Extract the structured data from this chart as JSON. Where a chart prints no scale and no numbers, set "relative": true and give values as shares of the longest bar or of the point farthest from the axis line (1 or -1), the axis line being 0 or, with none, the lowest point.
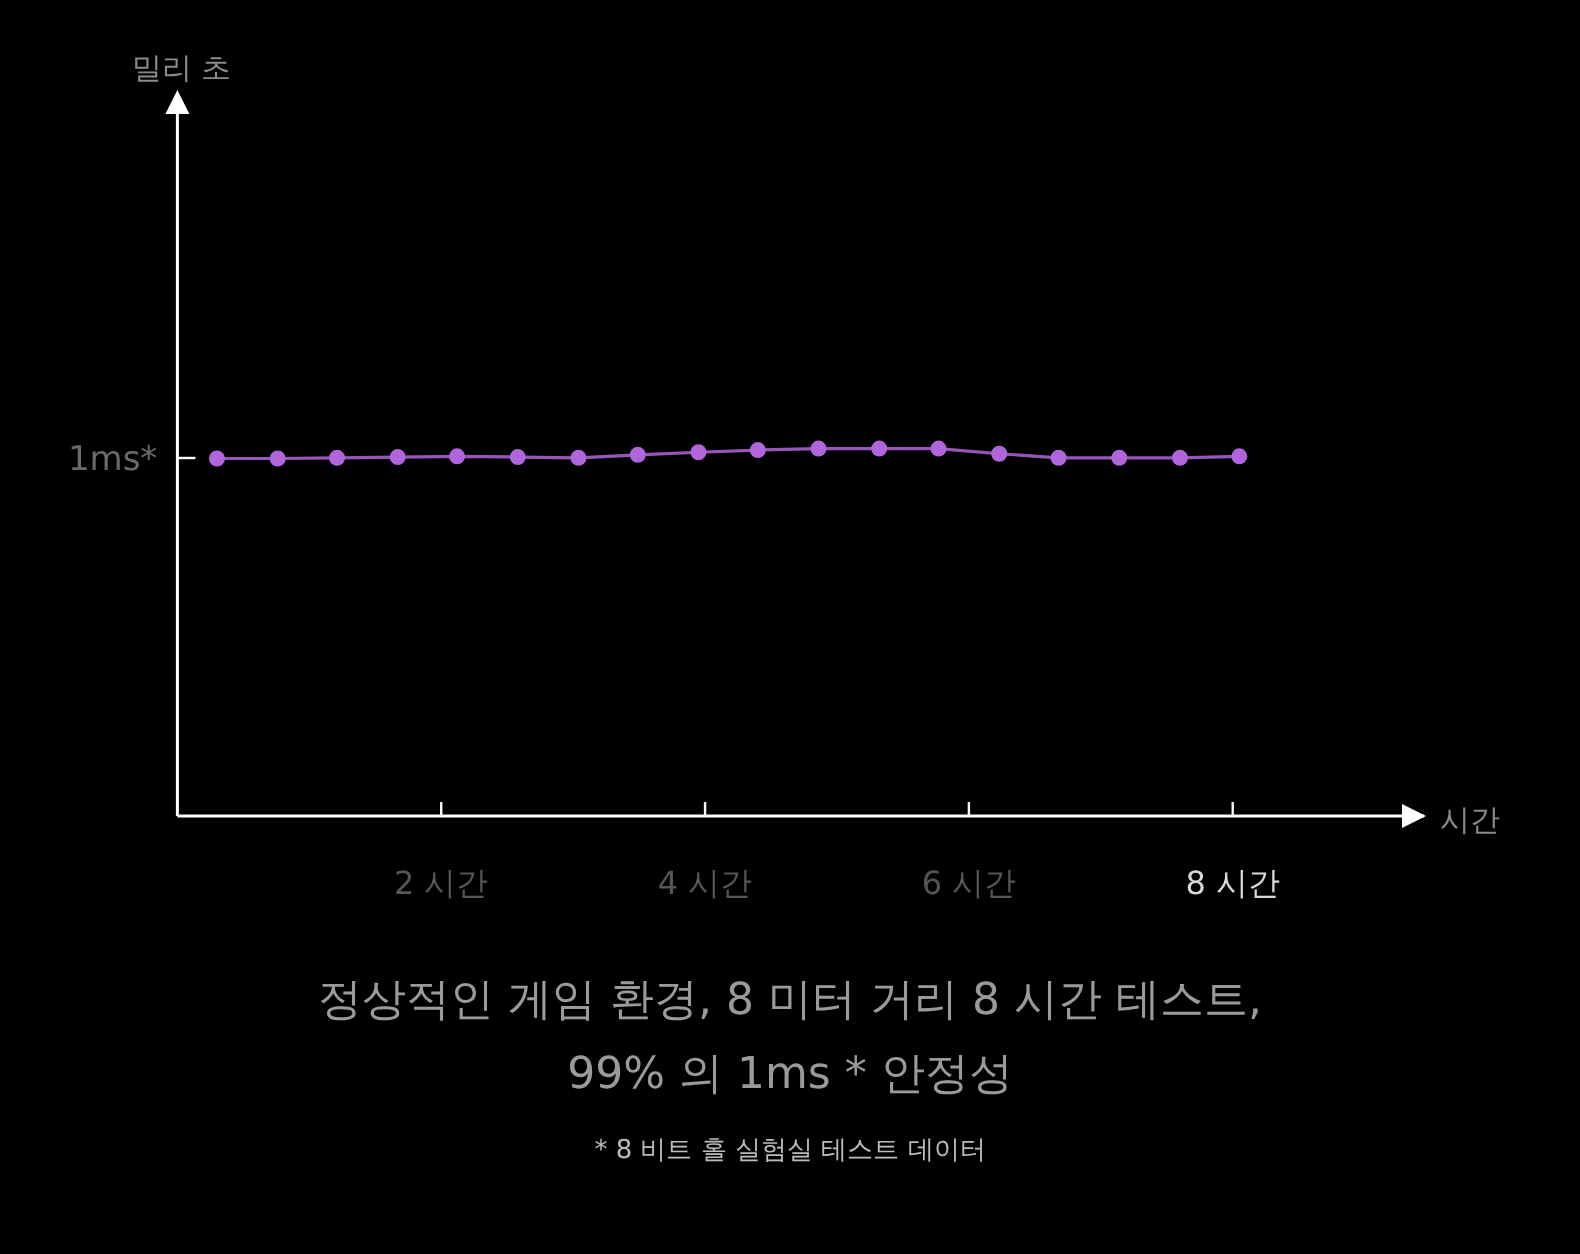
{
  "chart_data": {
    "type": "line",
    "relative": true,
    "xlabel": "시간",
    "title": "정상적인 게임 환경, 8 미터 거리 8 시간 테스트, 99% 의 1ms * 안정성",
    "x": [
      0.3,
      0.76,
      1.21,
      1.67,
      2.12,
      2.58,
      3.04,
      3.49,
      3.95,
      4.4,
      4.86,
      5.32,
      5.77,
      6.23,
      6.68,
      7.14,
      7.6,
      8.05
    ],
    "series": [
      {
        "color": "#b065dc",
        "values": [
          0.973,
          0.973,
          0.975,
          0.977,
          0.979,
          0.977,
          0.975,
          0.983,
          0.99,
          0.996,
          1,
          1,
          1,
          0.986,
          0.975,
          0.975,
          0.975,
          0.979
        ]
      }
    ],
    "xlim": [
      0,
      9.45
    ],
    "xticks": [
      {
        "value": 2,
        "label": "2 시간"
      },
      {
        "value": 4,
        "label": "4 시간"
      },
      {
        "value": 6,
        "label": "6 시간"
      },
      {
        "value": 8,
        "label": "8 시간"
      }
    ],
    "annotations": [
      "1ms*",
      "밀리 초",
      "* 8 비트 홀 실험실 테스트 데이터"
    ],
    "marker": "circle",
    "line_style": "solid"
  }
}
